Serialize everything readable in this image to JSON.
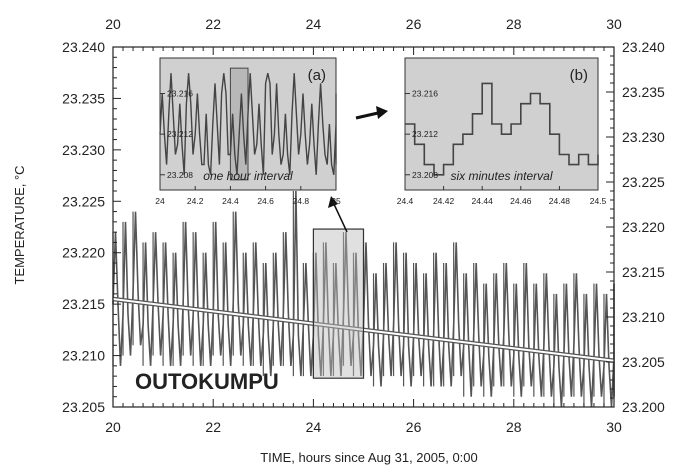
{
  "chart_data": {
    "type": "line",
    "xlabel": "TIME, hours since Aug 31, 2005, 0:00",
    "ylabel": "TEMPERATURE, °C",
    "annotation": "OUTOKUMPU",
    "xlim": [
      20,
      30
    ],
    "ylim_left": [
      23.205,
      23.24
    ],
    "ylim_right": [
      23.2,
      23.24
    ],
    "x_ticks": [
      "20",
      "22",
      "24",
      "26",
      "28",
      "30"
    ],
    "y_ticks_left": [
      "23.205",
      "23.210",
      "23.215",
      "23.220",
      "23.225",
      "23.230",
      "23.235",
      "23.240"
    ],
    "y_ticks_right": [
      "23.200",
      "23.205",
      "23.210",
      "23.215",
      "23.220",
      "23.225",
      "23.230",
      "23.235",
      "23.240"
    ],
    "grid": false,
    "series": [
      {
        "kind": "noisy-record",
        "color": "#555555",
        "x": [
          20.0,
          20.2,
          20.4,
          20.6,
          20.8,
          21.0,
          21.2,
          21.4,
          21.6,
          21.8,
          22.0,
          22.2,
          22.4,
          22.6,
          22.8,
          23.0,
          23.2,
          23.4,
          23.6,
          23.8,
          24.0,
          24.2,
          24.4,
          24.6,
          24.8,
          25.0,
          25.2,
          25.4,
          25.6,
          25.8,
          26.0,
          26.2,
          26.4,
          26.6,
          26.8,
          27.0,
          27.2,
          27.4,
          27.6,
          27.8,
          28.0,
          28.2,
          28.4,
          28.6,
          28.8,
          29.0,
          29.2,
          29.4,
          29.6,
          29.8,
          30.0
        ],
        "values": [
          23.215,
          23.214,
          23.216,
          23.213,
          23.215,
          23.214,
          23.213,
          23.215,
          23.214,
          23.213,
          23.214,
          23.213,
          23.215,
          23.213,
          23.214,
          23.212,
          23.213,
          23.214,
          23.212,
          23.213,
          23.212,
          23.213,
          23.212,
          23.214,
          23.212,
          23.213,
          23.211,
          23.212,
          23.213,
          23.211,
          23.212,
          23.211,
          23.212,
          23.211,
          23.213,
          23.211,
          23.212,
          23.21,
          23.211,
          23.212,
          23.21,
          23.211,
          23.21,
          23.211,
          23.209,
          23.21,
          23.211,
          23.209,
          23.21,
          23.209,
          23.21
        ],
        "min": [
          23.209,
          23.21,
          23.211,
          23.209,
          23.21,
          23.209,
          23.209,
          23.21,
          23.209,
          23.209,
          23.21,
          23.209,
          23.21,
          23.209,
          23.209,
          23.208,
          23.209,
          23.209,
          23.208,
          23.208,
          23.208,
          23.208,
          23.208,
          23.209,
          23.208,
          23.208,
          23.207,
          23.208,
          23.208,
          23.207,
          23.208,
          23.207,
          23.207,
          23.207,
          23.208,
          23.206,
          23.207,
          23.206,
          23.207,
          23.207,
          23.206,
          23.207,
          23.206,
          23.206,
          23.205,
          23.206,
          23.206,
          23.205,
          23.206,
          23.205,
          23.206
        ],
        "max": [
          23.222,
          23.223,
          23.224,
          23.221,
          23.222,
          23.221,
          23.22,
          23.223,
          23.222,
          23.22,
          23.223,
          23.221,
          23.224,
          23.22,
          23.221,
          23.219,
          23.22,
          23.222,
          23.226,
          23.219,
          23.22,
          23.221,
          23.219,
          23.222,
          23.22,
          23.221,
          23.218,
          23.219,
          23.221,
          23.22,
          23.219,
          23.218,
          23.22,
          23.219,
          23.221,
          23.218,
          23.219,
          23.217,
          23.218,
          23.219,
          23.217,
          23.219,
          23.217,
          23.218,
          23.216,
          23.217,
          23.218,
          23.216,
          23.217,
          23.216,
          23.217
        ]
      },
      {
        "kind": "trend",
        "color": "#ffffff",
        "x": [
          20,
          30
        ],
        "values": [
          23.2155,
          23.2095
        ]
      }
    ],
    "highlight_box": {
      "x": [
        24,
        25
      ],
      "y": [
        23.2078,
        23.2223
      ]
    },
    "insets": [
      {
        "label": "(a)",
        "caption": "one hour interval",
        "xlim": [
          24,
          25
        ],
        "ylim": [
          23.2065,
          23.2195
        ],
        "x_ticks": [
          "24",
          "24.2",
          "24.4",
          "24.6",
          "24.8",
          "25"
        ],
        "y_ticks": [
          "23.216",
          "23.212",
          "23.208"
        ],
        "y_tick_values": [
          23.216,
          23.212,
          23.208
        ],
        "highlight_box": {
          "x": [
            24.4,
            24.5
          ],
          "y": [
            23.2075,
            23.2185
          ]
        },
        "x": [
          24.0,
          24.05,
          24.1,
          24.15,
          24.2,
          24.25,
          24.3,
          24.35,
          24.4,
          24.45,
          24.5,
          24.55,
          24.6,
          24.65,
          24.7,
          24.75,
          24.8,
          24.85,
          24.9,
          24.95,
          25.0
        ],
        "values": [
          23.212,
          23.214,
          23.211,
          23.215,
          23.212,
          23.209,
          23.213,
          23.216,
          23.21,
          23.212,
          23.214,
          23.211,
          23.217,
          23.212,
          23.21,
          23.214,
          23.212,
          23.211,
          23.213,
          23.209,
          23.213
        ],
        "min": [
          23.209,
          23.21,
          23.208,
          23.21,
          23.209,
          23.208,
          23.209,
          23.21,
          23.208,
          23.209,
          23.21,
          23.208,
          23.21,
          23.209,
          23.208,
          23.21,
          23.209,
          23.208,
          23.21,
          23.208,
          23.209
        ],
        "max": [
          23.216,
          23.218,
          23.215,
          23.218,
          23.216,
          23.214,
          23.217,
          23.218,
          23.214,
          23.216,
          23.218,
          23.215,
          23.218,
          23.217,
          23.214,
          23.218,
          23.216,
          23.215,
          23.217,
          23.213,
          23.216
        ]
      },
      {
        "label": "(b)",
        "caption": "six minutes interval",
        "xlim": [
          24.4,
          24.5
        ],
        "ylim": [
          23.2065,
          23.2195
        ],
        "x_ticks": [
          "24.4",
          "24.42",
          "24.44",
          "24.46",
          "24.48",
          "24.5"
        ],
        "y_ticks": [
          "23.216",
          "23.212",
          "23.208"
        ],
        "y_tick_values": [
          23.216,
          23.212,
          23.208
        ],
        "x": [
          24.4,
          24.405,
          24.41,
          24.415,
          24.42,
          24.425,
          24.43,
          24.435,
          24.44,
          24.445,
          24.45,
          24.455,
          24.46,
          24.465,
          24.47,
          24.475,
          24.48,
          24.485,
          24.49,
          24.495,
          24.5
        ],
        "values": [
          23.213,
          23.211,
          23.209,
          23.208,
          23.209,
          23.211,
          23.212,
          23.214,
          23.217,
          23.213,
          23.212,
          23.213,
          23.215,
          23.216,
          23.215,
          23.212,
          23.21,
          23.209,
          23.21,
          23.209,
          23.21
        ]
      }
    ]
  }
}
